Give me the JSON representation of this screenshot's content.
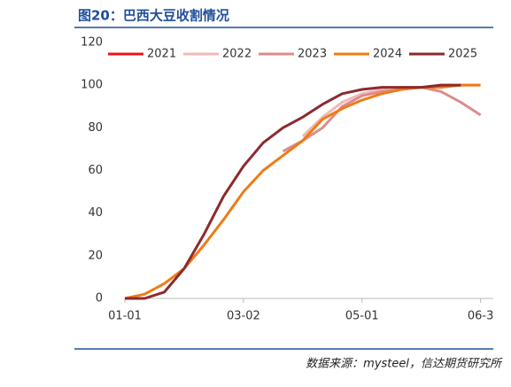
{
  "chart_data": {
    "type": "line",
    "title": "图20：巴西大豆收割情况",
    "source": "数据来源：mysteel，信达期货研究所",
    "x": [
      0,
      10,
      20,
      30,
      40,
      50,
      60,
      70,
      80,
      90,
      100,
      110,
      120,
      130,
      140,
      150,
      160,
      170,
      180
    ],
    "xlim": [
      0,
      186
    ],
    "xticks": [
      {
        "value": 0,
        "label": "01-01"
      },
      {
        "value": 60,
        "label": "03-02"
      },
      {
        "value": 120,
        "label": "05-01"
      },
      {
        "value": 180,
        "label": "06-3"
      }
    ],
    "ylim": [
      0,
      120
    ],
    "yticks": [
      0,
      20,
      40,
      60,
      80,
      100,
      120
    ],
    "series": [
      {
        "name": "2021",
        "color": "#e8141b",
        "values": [
          null,
          null,
          null,
          null,
          null,
          null,
          null,
          null,
          null,
          null,
          null,
          null,
          null,
          null,
          null,
          null,
          null,
          null,
          null
        ]
      },
      {
        "name": "2022",
        "color": "#f2b8b8",
        "values": [
          null,
          null,
          null,
          null,
          null,
          null,
          null,
          null,
          null,
          76,
          85,
          92,
          96,
          98,
          99,
          99,
          100,
          100,
          100
        ]
      },
      {
        "name": "2023",
        "color": "#dc8c8f",
        "values": [
          null,
          null,
          null,
          null,
          null,
          null,
          null,
          null,
          69,
          74,
          80,
          90,
          95,
          97,
          98,
          99,
          97,
          92,
          86
        ]
      },
      {
        "name": "2024",
        "color": "#ee7c14",
        "values": [
          0,
          2,
          7,
          14,
          25,
          37,
          50,
          60,
          67,
          74,
          84,
          89,
          93,
          96,
          98,
          99,
          99,
          100,
          100
        ]
      },
      {
        "name": "2025",
        "color": "#8b2a2e",
        "values": [
          0,
          0,
          3,
          14,
          30,
          48,
          62,
          73,
          80,
          85,
          91,
          96,
          98,
          99,
          99,
          99,
          100,
          100,
          null
        ]
      }
    ]
  }
}
